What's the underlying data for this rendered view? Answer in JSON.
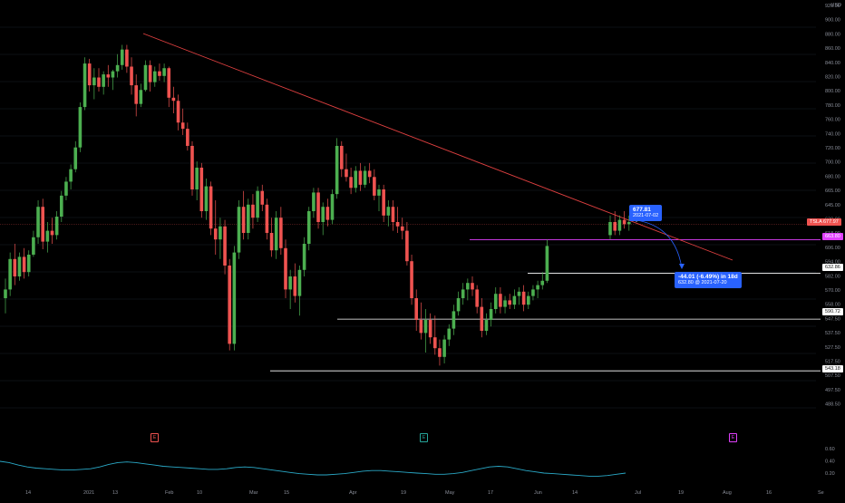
{
  "symbol": "TSLA",
  "currency": "USD",
  "colors": {
    "up": "#26a69a",
    "up_fill": "#4caf50",
    "down": "#ef5350",
    "trendline": "#e04040",
    "magenta": "#e040fb",
    "blue": "#2962ff",
    "osc": "#2aa9c7"
  },
  "price_axis": {
    "ticks": [
      "920.00",
      "900.00",
      "880.00",
      "860.00",
      "840.00",
      "820.00",
      "800.00",
      "780.00",
      "760.00",
      "740.00",
      "720.00",
      "700.00",
      "680.00",
      "665.00",
      "645.00",
      "630.00",
      "618.00",
      "606.00",
      "594.00",
      "582.00",
      "570.00",
      "558.00",
      "547.50",
      "537.50",
      "527.50",
      "517.50",
      "507.50",
      "497.50",
      "488.50"
    ]
  },
  "osc_axis": {
    "ticks": [
      "0.60",
      "0.40",
      "0.20"
    ]
  },
  "time_axis": {
    "ticks": [
      "14",
      "2021",
      "13",
      "Feb",
      "10",
      "Mar",
      "15",
      "Apr",
      "19",
      "May",
      "17",
      "Jun",
      "14",
      "Jul",
      "19",
      "Aug",
      "16",
      "Se"
    ]
  },
  "tags": {
    "last_symbol": "TSLA",
    "last_price": "677.97",
    "magenta_level": "663.80",
    "level_1": "632.86",
    "level_2": "590.72",
    "level_3": "543.18"
  },
  "callouts": {
    "point_price": "677.81",
    "point_date": "2021-07-02",
    "projection_main": "-44.01 (-6.49%) in 18d",
    "projection_sub": "632.80 @ 2021-07-20"
  },
  "events": [
    "E",
    "E",
    "E"
  ],
  "chart_data": {
    "type": "candlestick",
    "title": "",
    "ylim": [
      480,
      930
    ],
    "candles": [
      {
        "o": 610,
        "h": 628,
        "l": 596,
        "c": 618
      },
      {
        "o": 618,
        "h": 652,
        "l": 612,
        "c": 646
      },
      {
        "o": 646,
        "h": 660,
        "l": 622,
        "c": 630
      },
      {
        "o": 630,
        "h": 652,
        "l": 626,
        "c": 648
      },
      {
        "o": 648,
        "h": 656,
        "l": 628,
        "c": 634
      },
      {
        "o": 634,
        "h": 654,
        "l": 630,
        "c": 650
      },
      {
        "o": 650,
        "h": 672,
        "l": 648,
        "c": 666
      },
      {
        "o": 666,
        "h": 700,
        "l": 660,
        "c": 694
      },
      {
        "o": 694,
        "h": 702,
        "l": 655,
        "c": 662
      },
      {
        "o": 662,
        "h": 680,
        "l": 652,
        "c": 672
      },
      {
        "o": 672,
        "h": 684,
        "l": 660,
        "c": 668
      },
      {
        "o": 668,
        "h": 690,
        "l": 664,
        "c": 685
      },
      {
        "o": 685,
        "h": 712,
        "l": 680,
        "c": 706
      },
      {
        "o": 706,
        "h": 730,
        "l": 700,
        "c": 724
      },
      {
        "o": 724,
        "h": 746,
        "l": 714,
        "c": 740
      },
      {
        "o": 740,
        "h": 776,
        "l": 736,
        "c": 768
      },
      {
        "o": 768,
        "h": 826,
        "l": 762,
        "c": 820
      },
      {
        "o": 820,
        "h": 884,
        "l": 816,
        "c": 876
      },
      {
        "o": 876,
        "h": 882,
        "l": 840,
        "c": 848
      },
      {
        "o": 848,
        "h": 870,
        "l": 830,
        "c": 858
      },
      {
        "o": 858,
        "h": 870,
        "l": 840,
        "c": 846
      },
      {
        "o": 846,
        "h": 866,
        "l": 836,
        "c": 862
      },
      {
        "o": 862,
        "h": 874,
        "l": 846,
        "c": 858
      },
      {
        "o": 858,
        "h": 868,
        "l": 842,
        "c": 866
      },
      {
        "o": 866,
        "h": 888,
        "l": 858,
        "c": 874
      },
      {
        "o": 874,
        "h": 900,
        "l": 868,
        "c": 894
      },
      {
        "o": 894,
        "h": 900,
        "l": 864,
        "c": 872
      },
      {
        "o": 872,
        "h": 884,
        "l": 836,
        "c": 848
      },
      {
        "o": 848,
        "h": 862,
        "l": 808,
        "c": 824
      },
      {
        "o": 824,
        "h": 850,
        "l": 820,
        "c": 842
      },
      {
        "o": 842,
        "h": 880,
        "l": 840,
        "c": 874
      },
      {
        "o": 874,
        "h": 880,
        "l": 840,
        "c": 852
      },
      {
        "o": 852,
        "h": 872,
        "l": 846,
        "c": 866
      },
      {
        "o": 866,
        "h": 876,
        "l": 854,
        "c": 860
      },
      {
        "o": 860,
        "h": 876,
        "l": 852,
        "c": 870
      },
      {
        "o": 870,
        "h": 872,
        "l": 820,
        "c": 832
      },
      {
        "o": 832,
        "h": 846,
        "l": 812,
        "c": 828
      },
      {
        "o": 828,
        "h": 836,
        "l": 790,
        "c": 800
      },
      {
        "o": 800,
        "h": 818,
        "l": 784,
        "c": 792
      },
      {
        "o": 792,
        "h": 800,
        "l": 764,
        "c": 770
      },
      {
        "o": 770,
        "h": 776,
        "l": 706,
        "c": 714
      },
      {
        "o": 714,
        "h": 750,
        "l": 700,
        "c": 742
      },
      {
        "o": 742,
        "h": 748,
        "l": 684,
        "c": 690
      },
      {
        "o": 690,
        "h": 728,
        "l": 682,
        "c": 718
      },
      {
        "o": 718,
        "h": 724,
        "l": 668,
        "c": 674
      },
      {
        "o": 674,
        "h": 700,
        "l": 650,
        "c": 664
      },
      {
        "o": 664,
        "h": 684,
        "l": 646,
        "c": 676
      },
      {
        "o": 676,
        "h": 682,
        "l": 632,
        "c": 640
      },
      {
        "o": 640,
        "h": 646,
        "l": 562,
        "c": 568
      },
      {
        "o": 568,
        "h": 658,
        "l": 562,
        "c": 652
      },
      {
        "o": 652,
        "h": 700,
        "l": 646,
        "c": 694
      },
      {
        "o": 694,
        "h": 712,
        "l": 664,
        "c": 670
      },
      {
        "o": 670,
        "h": 702,
        "l": 664,
        "c": 696
      },
      {
        "o": 696,
        "h": 708,
        "l": 674,
        "c": 684
      },
      {
        "o": 684,
        "h": 718,
        "l": 680,
        "c": 712
      },
      {
        "o": 712,
        "h": 720,
        "l": 690,
        "c": 696
      },
      {
        "o": 696,
        "h": 702,
        "l": 664,
        "c": 670
      },
      {
        "o": 670,
        "h": 684,
        "l": 648,
        "c": 654
      },
      {
        "o": 654,
        "h": 690,
        "l": 646,
        "c": 684
      },
      {
        "o": 684,
        "h": 694,
        "l": 650,
        "c": 656
      },
      {
        "o": 656,
        "h": 664,
        "l": 610,
        "c": 618
      },
      {
        "o": 618,
        "h": 636,
        "l": 600,
        "c": 630
      },
      {
        "o": 630,
        "h": 642,
        "l": 606,
        "c": 612
      },
      {
        "o": 612,
        "h": 640,
        "l": 594,
        "c": 636
      },
      {
        "o": 636,
        "h": 666,
        "l": 630,
        "c": 660
      },
      {
        "o": 660,
        "h": 694,
        "l": 654,
        "c": 690
      },
      {
        "o": 690,
        "h": 716,
        "l": 684,
        "c": 710
      },
      {
        "o": 710,
        "h": 716,
        "l": 674,
        "c": 680
      },
      {
        "o": 680,
        "h": 698,
        "l": 668,
        "c": 694
      },
      {
        "o": 694,
        "h": 702,
        "l": 676,
        "c": 682
      },
      {
        "o": 682,
        "h": 714,
        "l": 678,
        "c": 708
      },
      {
        "o": 708,
        "h": 780,
        "l": 702,
        "c": 770
      },
      {
        "o": 770,
        "h": 776,
        "l": 730,
        "c": 740
      },
      {
        "o": 740,
        "h": 760,
        "l": 724,
        "c": 730
      },
      {
        "o": 730,
        "h": 742,
        "l": 708,
        "c": 716
      },
      {
        "o": 716,
        "h": 744,
        "l": 710,
        "c": 738
      },
      {
        "o": 738,
        "h": 748,
        "l": 712,
        "c": 720
      },
      {
        "o": 720,
        "h": 744,
        "l": 716,
        "c": 738
      },
      {
        "o": 738,
        "h": 748,
        "l": 722,
        "c": 730
      },
      {
        "o": 730,
        "h": 740,
        "l": 700,
        "c": 706
      },
      {
        "o": 706,
        "h": 720,
        "l": 690,
        "c": 714
      },
      {
        "o": 714,
        "h": 720,
        "l": 680,
        "c": 686
      },
      {
        "o": 686,
        "h": 700,
        "l": 676,
        "c": 694
      },
      {
        "o": 694,
        "h": 700,
        "l": 672,
        "c": 680
      },
      {
        "o": 680,
        "h": 694,
        "l": 670,
        "c": 676
      },
      {
        "o": 676,
        "h": 684,
        "l": 664,
        "c": 672
      },
      {
        "o": 672,
        "h": 680,
        "l": 640,
        "c": 644
      },
      {
        "o": 644,
        "h": 650,
        "l": 604,
        "c": 610
      },
      {
        "o": 610,
        "h": 618,
        "l": 580,
        "c": 590
      },
      {
        "o": 590,
        "h": 606,
        "l": 572,
        "c": 578
      },
      {
        "o": 578,
        "h": 600,
        "l": 560,
        "c": 590
      },
      {
        "o": 590,
        "h": 596,
        "l": 568,
        "c": 574
      },
      {
        "o": 574,
        "h": 594,
        "l": 558,
        "c": 564
      },
      {
        "o": 564,
        "h": 572,
        "l": 548,
        "c": 556
      },
      {
        "o": 556,
        "h": 576,
        "l": 550,
        "c": 572
      },
      {
        "o": 572,
        "h": 586,
        "l": 566,
        "c": 582
      },
      {
        "o": 582,
        "h": 604,
        "l": 576,
        "c": 598
      },
      {
        "o": 598,
        "h": 616,
        "l": 594,
        "c": 610
      },
      {
        "o": 610,
        "h": 624,
        "l": 604,
        "c": 618
      },
      {
        "o": 618,
        "h": 628,
        "l": 608,
        "c": 624
      },
      {
        "o": 624,
        "h": 630,
        "l": 612,
        "c": 618
      },
      {
        "o": 618,
        "h": 622,
        "l": 596,
        "c": 602
      },
      {
        "o": 602,
        "h": 610,
        "l": 574,
        "c": 580
      },
      {
        "o": 580,
        "h": 596,
        "l": 576,
        "c": 590
      },
      {
        "o": 590,
        "h": 606,
        "l": 584,
        "c": 600
      },
      {
        "o": 600,
        "h": 620,
        "l": 596,
        "c": 614
      },
      {
        "o": 614,
        "h": 620,
        "l": 596,
        "c": 602
      },
      {
        "o": 602,
        "h": 612,
        "l": 596,
        "c": 608
      },
      {
        "o": 608,
        "h": 614,
        "l": 600,
        "c": 604
      },
      {
        "o": 604,
        "h": 618,
        "l": 600,
        "c": 612
      },
      {
        "o": 612,
        "h": 620,
        "l": 604,
        "c": 616
      },
      {
        "o": 616,
        "h": 622,
        "l": 598,
        "c": 604
      },
      {
        "o": 604,
        "h": 616,
        "l": 600,
        "c": 612
      },
      {
        "o": 612,
        "h": 622,
        "l": 608,
        "c": 618
      },
      {
        "o": 618,
        "h": 626,
        "l": 610,
        "c": 622
      },
      {
        "o": 622,
        "h": 634,
        "l": 618,
        "c": 626
      },
      {
        "o": 626,
        "h": 664,
        "l": 624,
        "c": 658
      },
      {
        "o": 668,
        "h": 686,
        "l": 664,
        "c": 680
      },
      {
        "o": 680,
        "h": 690,
        "l": 668,
        "c": 672
      },
      {
        "o": 672,
        "h": 686,
        "l": 668,
        "c": 682
      },
      {
        "o": 682,
        "h": 690,
        "l": 674,
        "c": 678
      },
      {
        "o": 678,
        "h": 686,
        "l": 672,
        "c": 680
      }
    ],
    "oscillator": [
      0.42,
      0.4,
      0.36,
      0.33,
      0.31,
      0.3,
      0.29,
      0.28,
      0.28,
      0.29,
      0.3,
      0.33,
      0.37,
      0.4,
      0.41,
      0.4,
      0.38,
      0.36,
      0.34,
      0.33,
      0.32,
      0.31,
      0.3,
      0.29,
      0.29,
      0.3,
      0.32,
      0.33,
      0.32,
      0.3,
      0.28,
      0.26,
      0.24,
      0.22,
      0.21,
      0.2,
      0.2,
      0.21,
      0.22,
      0.24,
      0.26,
      0.27,
      0.27,
      0.26,
      0.25,
      0.24,
      0.23,
      0.22,
      0.21,
      0.21,
      0.22,
      0.24,
      0.27,
      0.3,
      0.33,
      0.34,
      0.33,
      0.3,
      0.27,
      0.25,
      0.23,
      0.22,
      0.21,
      0.2,
      0.19,
      0.18,
      0.18,
      0.19,
      0.21,
      0.23
    ],
    "trendline": {
      "from": {
        "candle": 24,
        "price": 905
      },
      "to": {
        "candle": 152,
        "price": 645
      }
    },
    "levels": [
      663.8,
      632.86,
      590.72,
      543.18
    ],
    "last_price": 677.97
  }
}
